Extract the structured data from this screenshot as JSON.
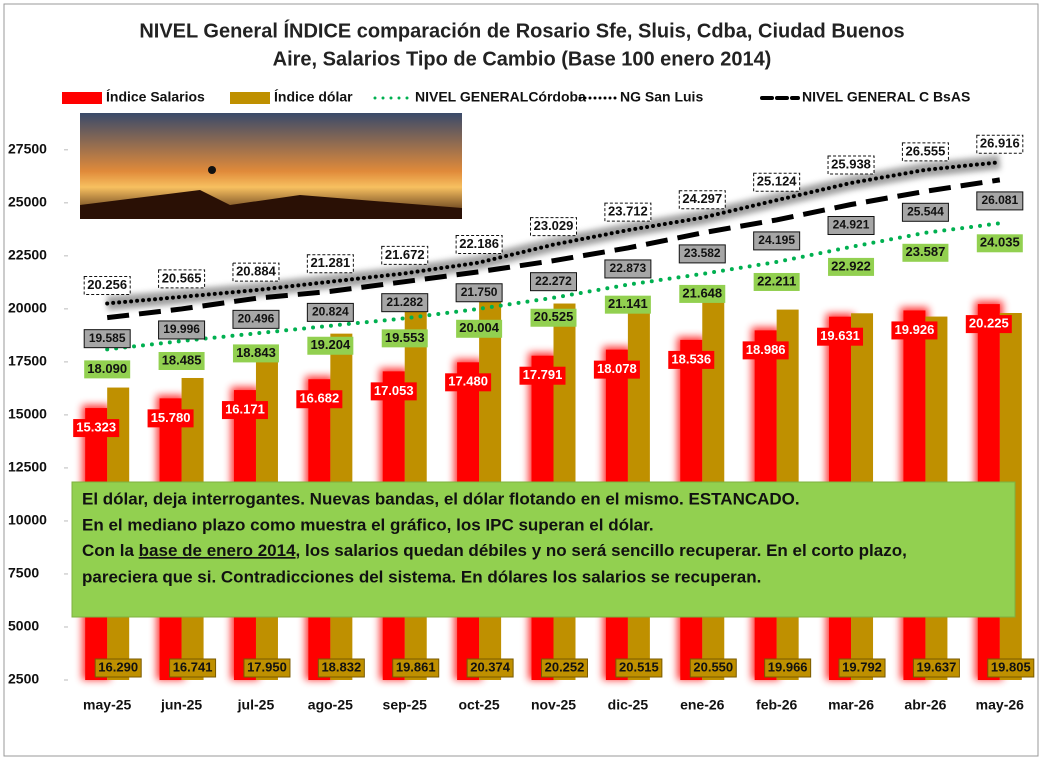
{
  "chart_data": {
    "type": "bar",
    "title": [
      "NIVEL General ÍNDICE comparación de Rosario Sfe, Sluis, Cdba, Ciudad Buenos",
      "Aire, Salarios Tipo de Cambio  (Base 100 enero 2014)"
    ],
    "categories": [
      "may-25",
      "jun-25",
      "jul-25",
      "ago-25",
      "sep-25",
      "oct-25",
      "nov-25",
      "dic-25",
      "ene-26",
      "feb-26",
      "mar-26",
      "abr-26",
      "may-26"
    ],
    "series": [
      {
        "name": "Índice Salarios",
        "type": "bar",
        "color": "#ff0000",
        "values": [
          15323,
          15780,
          16171,
          16682,
          17053,
          17480,
          17791,
          18078,
          18536,
          18986,
          19631,
          19926,
          20225
        ],
        "value_labels": [
          "15.323",
          "15.780",
          "16.171",
          "16.682",
          "17.053",
          "17.480",
          "17.791",
          "18.078",
          "18.536",
          "18.986",
          "19.631",
          "19.926",
          "20.225"
        ]
      },
      {
        "name": "Índice dólar",
        "type": "bar",
        "color": "#bf9000",
        "values": [
          16290,
          16741,
          17950,
          18832,
          19861,
          20374,
          20252,
          20515,
          20550,
          19966,
          19792,
          19637,
          19805
        ],
        "value_labels": [
          "16.290",
          "16.741",
          "17.950",
          "18.832",
          "19.861",
          "20.374",
          "20.252",
          "20.515",
          "20.550",
          "19.966",
          "19.792",
          "19.637",
          "19.805"
        ]
      },
      {
        "name": "NIVEL GENERALCórdoba",
        "type": "line",
        "line_style": "dotted",
        "color": "#00b050",
        "values": [
          18090,
          18485,
          18843,
          19204,
          19553,
          20004,
          20525,
          21141,
          21648,
          22211,
          22922,
          23587,
          24035
        ],
        "value_labels": [
          "18.090",
          "18.485",
          "18.843",
          "19.204",
          "19.553",
          "20.004",
          "20.525",
          "21.141",
          "21.648",
          "22.211",
          "22.922",
          "23.587",
          "24.035"
        ]
      },
      {
        "name": "NG San Luis",
        "type": "line",
        "line_style": "dotted",
        "color": "#000000",
        "values": [
          20256,
          20565,
          20884,
          21281,
          21672,
          22186,
          23029,
          23712,
          24297,
          25124,
          25938,
          26555,
          26916
        ],
        "value_labels": [
          "20.256",
          "20.565",
          "20.884",
          "21.281",
          "21.672",
          "22.186",
          "23.029",
          "23.712",
          "24.297",
          "25.124",
          "25.938",
          "26.555",
          "26.916"
        ]
      },
      {
        "name": "NIVEL GENERAL C BsAS",
        "type": "line",
        "line_style": "dashed",
        "color": "#000000",
        "values": [
          19585,
          19996,
          20496,
          20824,
          21282,
          21750,
          22272,
          22873,
          23582,
          24195,
          24921,
          25544,
          26081
        ],
        "value_labels": [
          "19.585",
          "19.996",
          "20.496",
          "20.824",
          "21.282",
          "21.750",
          "22.272",
          "22.873",
          "23.582",
          "24.195",
          "24.921",
          "25.544",
          "26.081"
        ]
      }
    ],
    "ylim": [
      2500,
      29000
    ],
    "yticks": [
      2500,
      5000,
      7500,
      10000,
      12500,
      15000,
      17500,
      20000,
      22500,
      25000,
      27500
    ],
    "grid": false,
    "legend": "top",
    "annotation": [
      "El dólar, deja interrogantes.  Nuevas bandas, el dólar flotando en el mismo. ESTANCADO.",
      "En el mediano plazo como muestra el gráfico, los IPC superan el dólar.",
      [
        "Con la ",
        "base de enero 2014",
        ", los  salarios quedan débiles y no será sencillo recuperar. En el corto plazo,"
      ],
      "pareciera que si. Contradicciones del sistema. En dólares los salarios se recuperan."
    ]
  }
}
